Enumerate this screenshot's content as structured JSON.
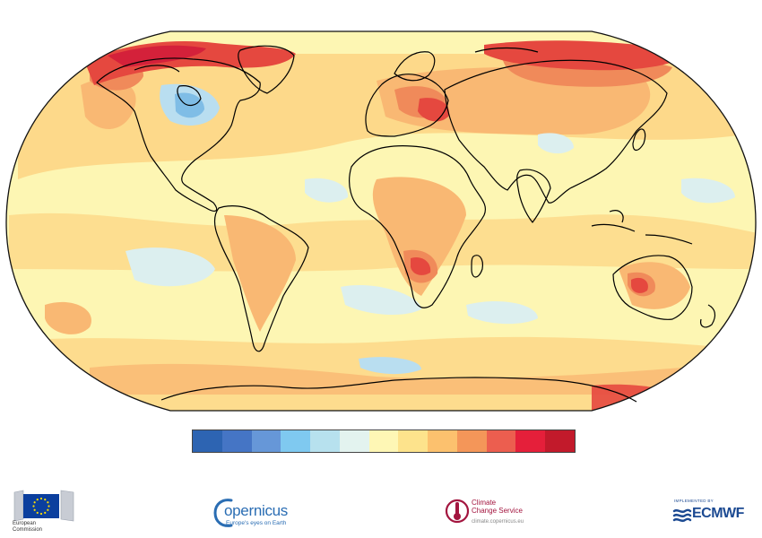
{
  "map": {
    "projection": "robinson",
    "variable": "surface air temperature anomaly",
    "colors": {
      "ocean_base": "#fdf6b3",
      "warm1": "#fdd98a",
      "warm2": "#f9b873",
      "warm3": "#f08a5a",
      "warm4": "#e5483f",
      "warm5": "#d4213a",
      "cool1": "#dcefef",
      "cool2": "#b9def0",
      "cool3": "#7fbde6",
      "coastline": "#000000"
    }
  },
  "colorbar": {
    "colors": [
      "#2d64b2",
      "#4575c5",
      "#6697d8",
      "#7fc9f0",
      "#b7e1ee",
      "#e3f3ef",
      "#fef7b5",
      "#fde38c",
      "#fcc16e",
      "#f49659",
      "#ec5e4f",
      "#e51f3a",
      "#c21a2b"
    ]
  },
  "logos": {
    "european_commission": {
      "text_line1": "European",
      "text_line2": "Commission",
      "flag_color": "#0b3f9e",
      "star_color": "#ffdd00"
    },
    "copernicus": {
      "name": "opernicus",
      "tagline": "Europe's eyes on Earth",
      "color": "#2a6db3"
    },
    "c3s": {
      "line1": "Climate",
      "line2": "Change Service",
      "url": "climate.copernicus.eu",
      "color": "#a3153f"
    },
    "ecmwf": {
      "prefix": "IMPLEMENTED BY",
      "name": "ECMWF",
      "color": "#1c4a92"
    }
  }
}
